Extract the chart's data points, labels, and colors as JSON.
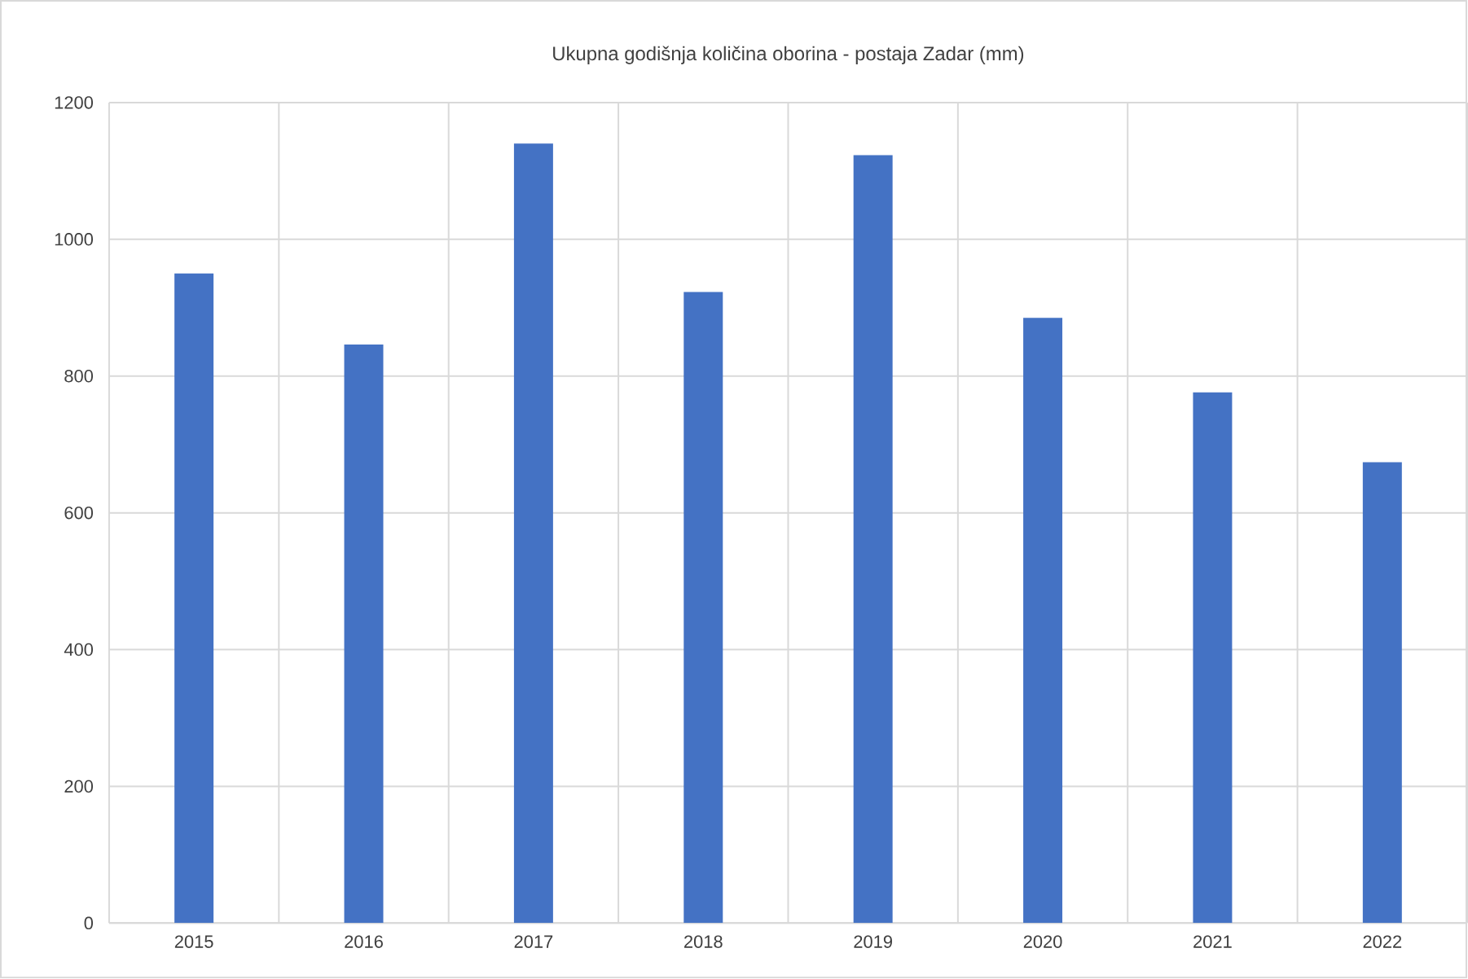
{
  "chart_data": {
    "type": "bar",
    "title": "Ukupna godišnja količina oborina - postaja Zadar (mm)",
    "categories": [
      "2015",
      "2016",
      "2017",
      "2018",
      "2019",
      "2020",
      "2021",
      "2022"
    ],
    "values": [
      950,
      846,
      1140,
      923,
      1123,
      885,
      776,
      674
    ],
    "color": "#4472c4",
    "ylim": [
      0,
      1200
    ],
    "yticks": [
      0,
      200,
      400,
      600,
      800,
      1000,
      1200
    ],
    "grid": true
  }
}
